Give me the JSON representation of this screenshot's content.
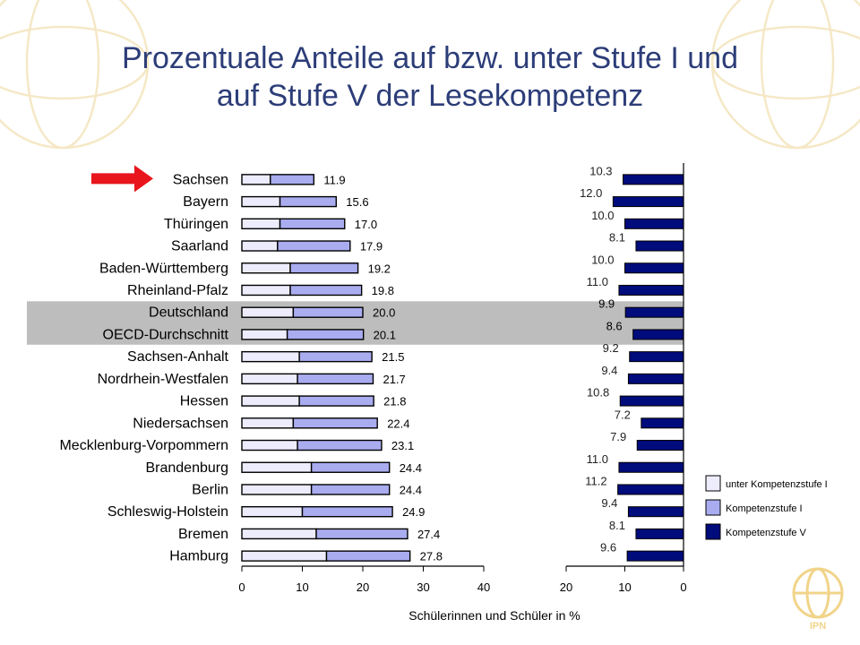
{
  "slide": {
    "title_line1": "Prozentuale Anteile auf bzw. unter Stufe I und",
    "title_line2": "auf Stufe V der Lesekompetenz"
  },
  "logo": {
    "text": "IPN",
    "color": "#f1d489"
  },
  "colors": {
    "below_level1": "#ececfd",
    "level1": "#a9acef",
    "level5": "#000b7c",
    "highlight_band": "#bdbdbd",
    "arrow": "#e8151d",
    "title": "#2c3d78"
  },
  "chart_data": {
    "type": "bar",
    "orientation": "horizontal",
    "categories": [
      "Sachsen",
      "Bayern",
      "Thüringen",
      "Saarland",
      "Baden-Württemberg",
      "Rheinland-Pfalz",
      "Deutschland",
      "OECD-Durchschnitt",
      "Sachsen-Anhalt",
      "Nordrhein-Westfalen",
      "Hessen",
      "Niedersachsen",
      "Mecklenburg-Vorpommern",
      "Brandenburg",
      "Berlin",
      "Schleswig-Holstein",
      "Bremen",
      "Hamburg"
    ],
    "highlighted_categories": [
      "Deutschland",
      "OECD-Durchschnitt"
    ],
    "marked_category": "Sachsen",
    "series": [
      {
        "name": "unter Kompetenzstufe I",
        "panel": "left",
        "values": [
          4.7,
          6.3,
          6.3,
          5.9,
          8.0,
          8.0,
          8.5,
          7.5,
          9.5,
          9.2,
          9.5,
          8.5,
          9.2,
          11.5,
          11.5,
          10.0,
          12.3,
          14.0
        ]
      },
      {
        "name": "Kompetenzstufe I",
        "panel": "left",
        "values": [
          7.2,
          9.3,
          10.7,
          12.0,
          11.2,
          11.8,
          11.5,
          12.6,
          12.0,
          12.5,
          12.3,
          13.9,
          13.9,
          12.9,
          12.9,
          14.9,
          15.1,
          13.8
        ]
      },
      {
        "name": "Kompetenzstufe V",
        "panel": "right",
        "values": [
          10.3,
          12.0,
          10.0,
          8.1,
          10.0,
          11.0,
          9.9,
          8.6,
          9.2,
          9.4,
          10.8,
          7.2,
          7.9,
          11.0,
          11.2,
          9.4,
          8.1,
          9.6
        ]
      }
    ],
    "left_totals": [
      "11.9",
      "15.6",
      "17.0",
      "17.9",
      "19.2",
      "19.8",
      "20.0",
      "20.1",
      "21.5",
      "21.7",
      "21.8",
      "22.4",
      "23.1",
      "24.4",
      "24.4",
      "24.9",
      "27.4",
      "27.8"
    ],
    "right_labels": [
      "10.3",
      "12.0",
      "10.0",
      "8.1",
      "10.0",
      "11.0",
      "9.9",
      "8.6",
      "9.2",
      "9.4",
      "10.8",
      "7.2",
      "7.9",
      "11.0",
      "11.2",
      "9.4",
      "8.1",
      "9.6"
    ],
    "left_axis": {
      "range": [
        0,
        40
      ],
      "ticks": [
        "0",
        "10",
        "20",
        "30",
        "40"
      ]
    },
    "right_axis": {
      "range": [
        20,
        0
      ],
      "ticks": [
        "20",
        "10",
        "0"
      ]
    },
    "xlabel": "Schülerinnen und Schüler in %",
    "legend": {
      "position": "right",
      "items": [
        "unter Kompetenzstufe I",
        "Kompetenzstufe I",
        "Kompetenzstufe V"
      ]
    },
    "grid": false
  }
}
